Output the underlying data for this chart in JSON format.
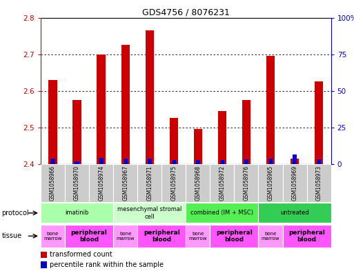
{
  "title": "GDS4756 / 8076231",
  "samples": [
    "GSM1058966",
    "GSM1058970",
    "GSM1058974",
    "GSM1058967",
    "GSM1058971",
    "GSM1058975",
    "GSM1058968",
    "GSM1058972",
    "GSM1058976",
    "GSM1058965",
    "GSM1058969",
    "GSM1058973"
  ],
  "red_values": [
    2.63,
    2.575,
    2.7,
    2.725,
    2.765,
    2.525,
    2.495,
    2.545,
    2.575,
    2.695,
    2.415,
    2.625
  ],
  "blue_values_pct": [
    3.5,
    2.0,
    4.0,
    3.5,
    3.5,
    2.5,
    2.5,
    2.5,
    3.0,
    3.5,
    6.5,
    3.0
  ],
  "y_min": 2.4,
  "y_max": 2.8,
  "y_ticks": [
    2.4,
    2.5,
    2.6,
    2.7,
    2.8
  ],
  "y2_ticks": [
    0,
    25,
    50,
    75,
    100
  ],
  "protocols": [
    {
      "label": "imatinib",
      "start": 0,
      "end": 3,
      "color": "#aaffaa"
    },
    {
      "label": "mesenchymal stromal\ncell",
      "start": 3,
      "end": 6,
      "color": "#ccffcc"
    },
    {
      "label": "combined (IM + MSC)",
      "start": 6,
      "end": 9,
      "color": "#55ee55"
    },
    {
      "label": "untreated",
      "start": 9,
      "end": 12,
      "color": "#33cc55"
    }
  ],
  "tissues": [
    {
      "label": "bone\nmarrow",
      "start": 0,
      "end": 1,
      "color": "#ff99ff",
      "bold": false
    },
    {
      "label": "peripheral\nblood",
      "start": 1,
      "end": 3,
      "color": "#ff55ff",
      "bold": true
    },
    {
      "label": "bone\nmarrow",
      "start": 3,
      "end": 4,
      "color": "#ff99ff",
      "bold": false
    },
    {
      "label": "peripheral\nblood",
      "start": 4,
      "end": 6,
      "color": "#ff55ff",
      "bold": true
    },
    {
      "label": "bone\nmarrow",
      "start": 6,
      "end": 7,
      "color": "#ff99ff",
      "bold": false
    },
    {
      "label": "peripheral\nblood",
      "start": 7,
      "end": 9,
      "color": "#ff55ff",
      "bold": true
    },
    {
      "label": "bone\nmarrow",
      "start": 9,
      "end": 10,
      "color": "#ff99ff",
      "bold": false
    },
    {
      "label": "peripheral\nblood",
      "start": 10,
      "end": 12,
      "color": "#ff55ff",
      "bold": true
    }
  ],
  "bar_color": "#cc0000",
  "blue_color": "#0000cc",
  "bar_width": 0.35,
  "blue_bar_width": 0.18
}
